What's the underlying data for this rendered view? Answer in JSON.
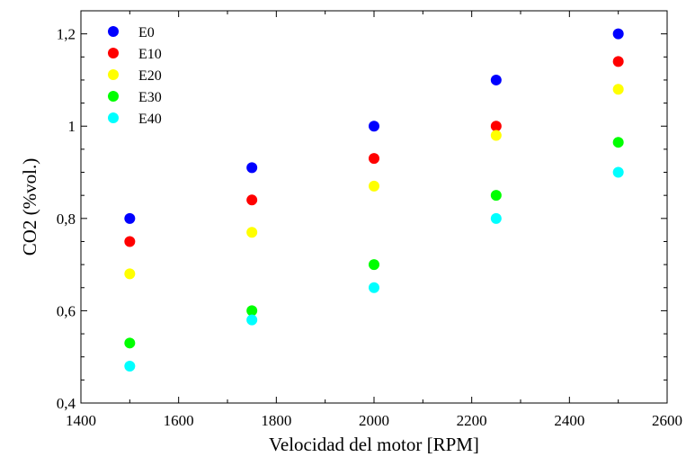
{
  "chart_data": {
    "type": "scatter",
    "title": "",
    "xlabel": "Velocidad del motor [RPM]",
    "ylabel": "CO2 (%vol.)",
    "xlim": [
      1400,
      2600
    ],
    "ylim": [
      0.4,
      1.25
    ],
    "x_ticks": [
      1400,
      1600,
      1800,
      2000,
      2200,
      2400,
      2600
    ],
    "x_tick_labels": [
      "1400",
      "1600",
      "1800",
      "2000",
      "2200",
      "2400",
      "2600"
    ],
    "y_ticks": [
      0.4,
      0.6,
      0.8,
      1.0,
      1.2
    ],
    "y_tick_labels": [
      "0,4",
      "0,6",
      "0,8",
      "1",
      "1,2"
    ],
    "grid": false,
    "legend_position": "top-left",
    "x": [
      1500,
      1750,
      2000,
      2250,
      2500
    ],
    "series": [
      {
        "name": "E0",
        "color": "#0000ff",
        "values": [
          0.8,
          0.91,
          1.0,
          1.1,
          1.2
        ]
      },
      {
        "name": "E10",
        "color": "#ff0000",
        "values": [
          0.75,
          0.84,
          0.93,
          1.0,
          1.14
        ]
      },
      {
        "name": "E20",
        "color": "#ffff00",
        "values": [
          0.68,
          0.77,
          0.87,
          0.98,
          1.08
        ]
      },
      {
        "name": "E30",
        "color": "#00ff00",
        "values": [
          0.53,
          0.6,
          0.7,
          0.85,
          0.965
        ]
      },
      {
        "name": "E40",
        "color": "#00ffff",
        "values": [
          0.48,
          0.58,
          0.65,
          0.8,
          0.9
        ]
      }
    ]
  }
}
